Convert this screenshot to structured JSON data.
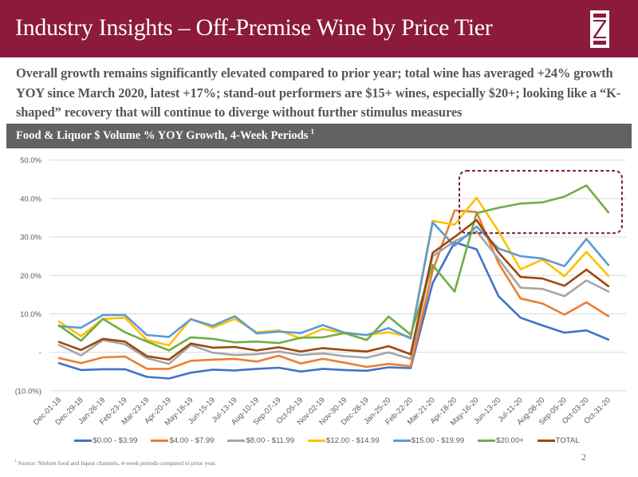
{
  "header": {
    "title": "Industry Insights – Off-Premise Wine by Price Tier",
    "logo_icon": "z-monogram-logo",
    "brand_color": "#8b1a3c"
  },
  "summary": "Overall growth remains significantly elevated compared to prior year; total wine has averaged +24% growth YOY since March 2020, latest +17%; stand-out performers are $15+ wines, especially $20+; looking like a “K-shaped” recovery that will continue to diverge without further stimulus measures",
  "chart_band": {
    "title": "Food & Liquor $ Volume % YOY Growth, 4-Week Periods",
    "footnote_marker": "1"
  },
  "footnote": {
    "marker": "1",
    "text": " Source: Nielsen food and liquor channels, 4-week periods compared to prior year."
  },
  "page_number": "2",
  "chart_data": {
    "type": "line",
    "title": "Food & Liquor $ Volume % YOY Growth, 4-Week Periods",
    "xlabel": "",
    "ylabel": "",
    "ylim": [
      -10,
      50
    ],
    "yticks": [
      -10,
      0,
      10,
      20,
      30,
      40,
      50
    ],
    "ytick_labels": [
      "(10.0%)",
      "-",
      "10.0%",
      "20.0%",
      "30.0%",
      "40.0%",
      "50.0%"
    ],
    "grid": true,
    "legend_position": "bottom",
    "categories": [
      "Dec-01-18",
      "Dec-29-18",
      "Jan-26-19",
      "Feb-23-19",
      "Mar-23-19",
      "Apr-20-19",
      "May-18-19",
      "Jun-15-19",
      "Jul-13-19",
      "Aug-10-19",
      "Sep-07-19",
      "Oct-05-19",
      "Nov-02-19",
      "Nov-30-19",
      "Dec-28-19",
      "Jan-25-20",
      "Feb-22-20",
      "Mar-21-20",
      "Apr-18-20",
      "May-16-20",
      "Jun-13-20",
      "Jul-11-20",
      "Aug-08-20",
      "Sep-05-20",
      "Oct-03-20",
      "Oct-31-20"
    ],
    "series": [
      {
        "name": "$0.00 - $3.99",
        "color": "#4472c4",
        "values": [
          -2.8,
          -4.6,
          -4.4,
          -4.4,
          -6.4,
          -6.8,
          -5.3,
          -4.5,
          -4.7,
          -4.3,
          -4.0,
          -5.0,
          -4.3,
          -4.6,
          -4.8,
          -3.9,
          -4.1,
          18.0,
          28.6,
          26.8,
          14.6,
          9.0,
          7.0,
          5.1,
          5.7,
          3.3
        ]
      },
      {
        "name": "$4.00 - $7.99",
        "color": "#ed7d31",
        "values": [
          -1.5,
          -2.8,
          -1.3,
          -1.1,
          -4.3,
          -4.3,
          -2.2,
          -1.9,
          -1.7,
          -2.4,
          -0.9,
          -2.9,
          -1.7,
          -2.7,
          -3.8,
          -3.0,
          -3.6,
          21.2,
          36.9,
          36.5,
          23.2,
          14.0,
          12.7,
          9.8,
          13.0,
          9.4
        ]
      },
      {
        "name": "$8.00 - $11.99",
        "color": "#a5a5a5",
        "values": [
          1.9,
          -0.8,
          3.2,
          2.1,
          -1.5,
          -3.0,
          1.9,
          -0.1,
          -0.7,
          -0.5,
          0.2,
          -0.7,
          -0.3,
          -1.0,
          -1.4,
          0.0,
          -1.7,
          25.0,
          28.9,
          31.5,
          24.3,
          16.8,
          16.5,
          14.6,
          18.7,
          15.8
        ]
      },
      {
        "name": "$12.00 - $14.99",
        "color": "#ffc000",
        "values": [
          8.0,
          4.2,
          8.7,
          9.0,
          3.2,
          1.8,
          8.7,
          6.4,
          8.7,
          5.2,
          5.7,
          3.6,
          6.1,
          4.9,
          4.5,
          5.2,
          4.0,
          34.2,
          33.2,
          40.2,
          31.5,
          21.6,
          24.1,
          19.8,
          26.1,
          19.9
        ]
      },
      {
        "name": "$15.00 - $19.99",
        "color": "#5b9bd5",
        "values": [
          6.8,
          6.4,
          9.7,
          9.7,
          4.5,
          4.0,
          8.6,
          6.9,
          9.4,
          4.9,
          5.4,
          5.0,
          7.1,
          5.1,
          4.5,
          6.3,
          3.6,
          33.8,
          27.7,
          32.7,
          27.0,
          25.0,
          24.4,
          22.4,
          29.5,
          22.7
        ]
      },
      {
        "name": "$20.00+",
        "color": "#70ad47",
        "values": [
          7.0,
          3.0,
          8.7,
          5.2,
          2.8,
          0.5,
          3.9,
          3.5,
          2.6,
          2.8,
          2.4,
          3.8,
          3.9,
          5.0,
          3.2,
          9.3,
          4.6,
          22.7,
          15.8,
          36.2,
          37.6,
          38.7,
          39.0,
          40.5,
          43.4,
          36.4
        ]
      },
      {
        "name": "TOTAL",
        "color": "#9e480e",
        "values": [
          2.7,
          0.6,
          3.5,
          2.8,
          -1.0,
          -1.9,
          2.3,
          1.2,
          1.4,
          0.5,
          1.3,
          0.2,
          1.1,
          0.6,
          0.2,
          1.6,
          -0.5,
          25.9,
          30.0,
          34.4,
          26.0,
          19.6,
          19.2,
          17.3,
          21.5,
          17.2
        ]
      }
    ],
    "annotation": {
      "type": "dashed-rounded-box",
      "color": "#7b1f2e",
      "x_range": [
        "Apr-18-20",
        "Oct-31-20"
      ],
      "y_range": [
        31,
        47
      ],
      "description": "highlights $20.00+ series outperforming"
    }
  }
}
